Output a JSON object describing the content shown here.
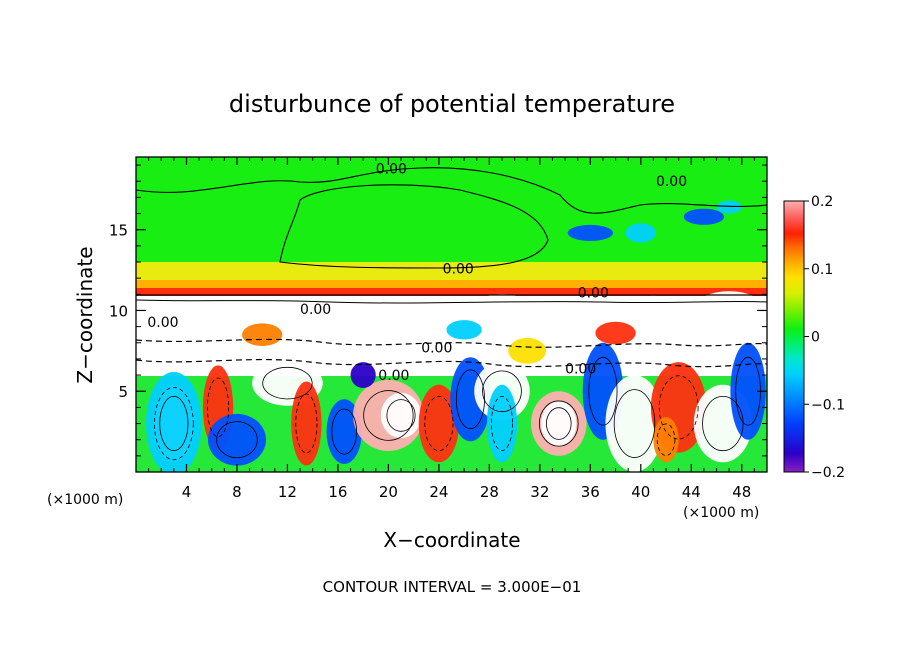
{
  "chart_data": {
    "type": "heatmap",
    "title": "disturbunce of potential temperature",
    "xlabel": "X−coordinate",
    "ylabel": "Z−coordinate",
    "x_unit_label_left": "(×1000 m)",
    "x_unit_label_right": "(×1000 m)",
    "xlim": [
      0,
      50
    ],
    "ylim": [
      0,
      19.5
    ],
    "xticks": [
      4,
      8,
      12,
      16,
      20,
      24,
      28,
      32,
      36,
      40,
      44,
      48
    ],
    "yticks": [
      5,
      10,
      15
    ],
    "zlim": [
      -0.2,
      0.2
    ],
    "colorbar_ticks": [
      {
        "value": 0.2,
        "label": "0.2"
      },
      {
        "value": 0.1,
        "label": "0.1"
      },
      {
        "value": 0,
        "label": "0"
      },
      {
        "value": -0.1,
        "label": "−0.1"
      },
      {
        "value": -0.2,
        "label": "−0.2"
      }
    ],
    "colorbar_colors": [
      "#8a1fbf",
      "#2a00c8",
      "#0040ff",
      "#0090ff",
      "#00d0ff",
      "#00e8c8",
      "#00f060",
      "#10f010",
      "#80f000",
      "#d8f000",
      "#ffe000",
      "#ffb000",
      "#ff6a00",
      "#ff2000",
      "#ff6060",
      "#ffb0b0"
    ],
    "contour_labels": [
      {
        "text": "0.00",
        "x": 19.0,
        "z": 18.8
      },
      {
        "text": "0.00",
        "x": 41.2,
        "z": 18.0
      },
      {
        "text": "0.00",
        "x": 24.3,
        "z": 12.6
      },
      {
        "text": "0.00",
        "x": 35.0,
        "z": 11.1
      },
      {
        "text": "0.00",
        "x": 13.0,
        "z": 10.1
      },
      {
        "text": "0.00",
        "x": 0.9,
        "z": 9.3
      },
      {
        "text": "0.00",
        "x": 22.6,
        "z": 7.7
      },
      {
        "text": "0.00",
        "x": 19.2,
        "z": 6.0
      },
      {
        "text": "0.00",
        "x": 34.0,
        "z": 6.4
      }
    ],
    "grid": false,
    "legend": "right colorbar"
  },
  "footer": {
    "contour_interval": "CONTOUR INTERVAL = 3.000E−01"
  }
}
